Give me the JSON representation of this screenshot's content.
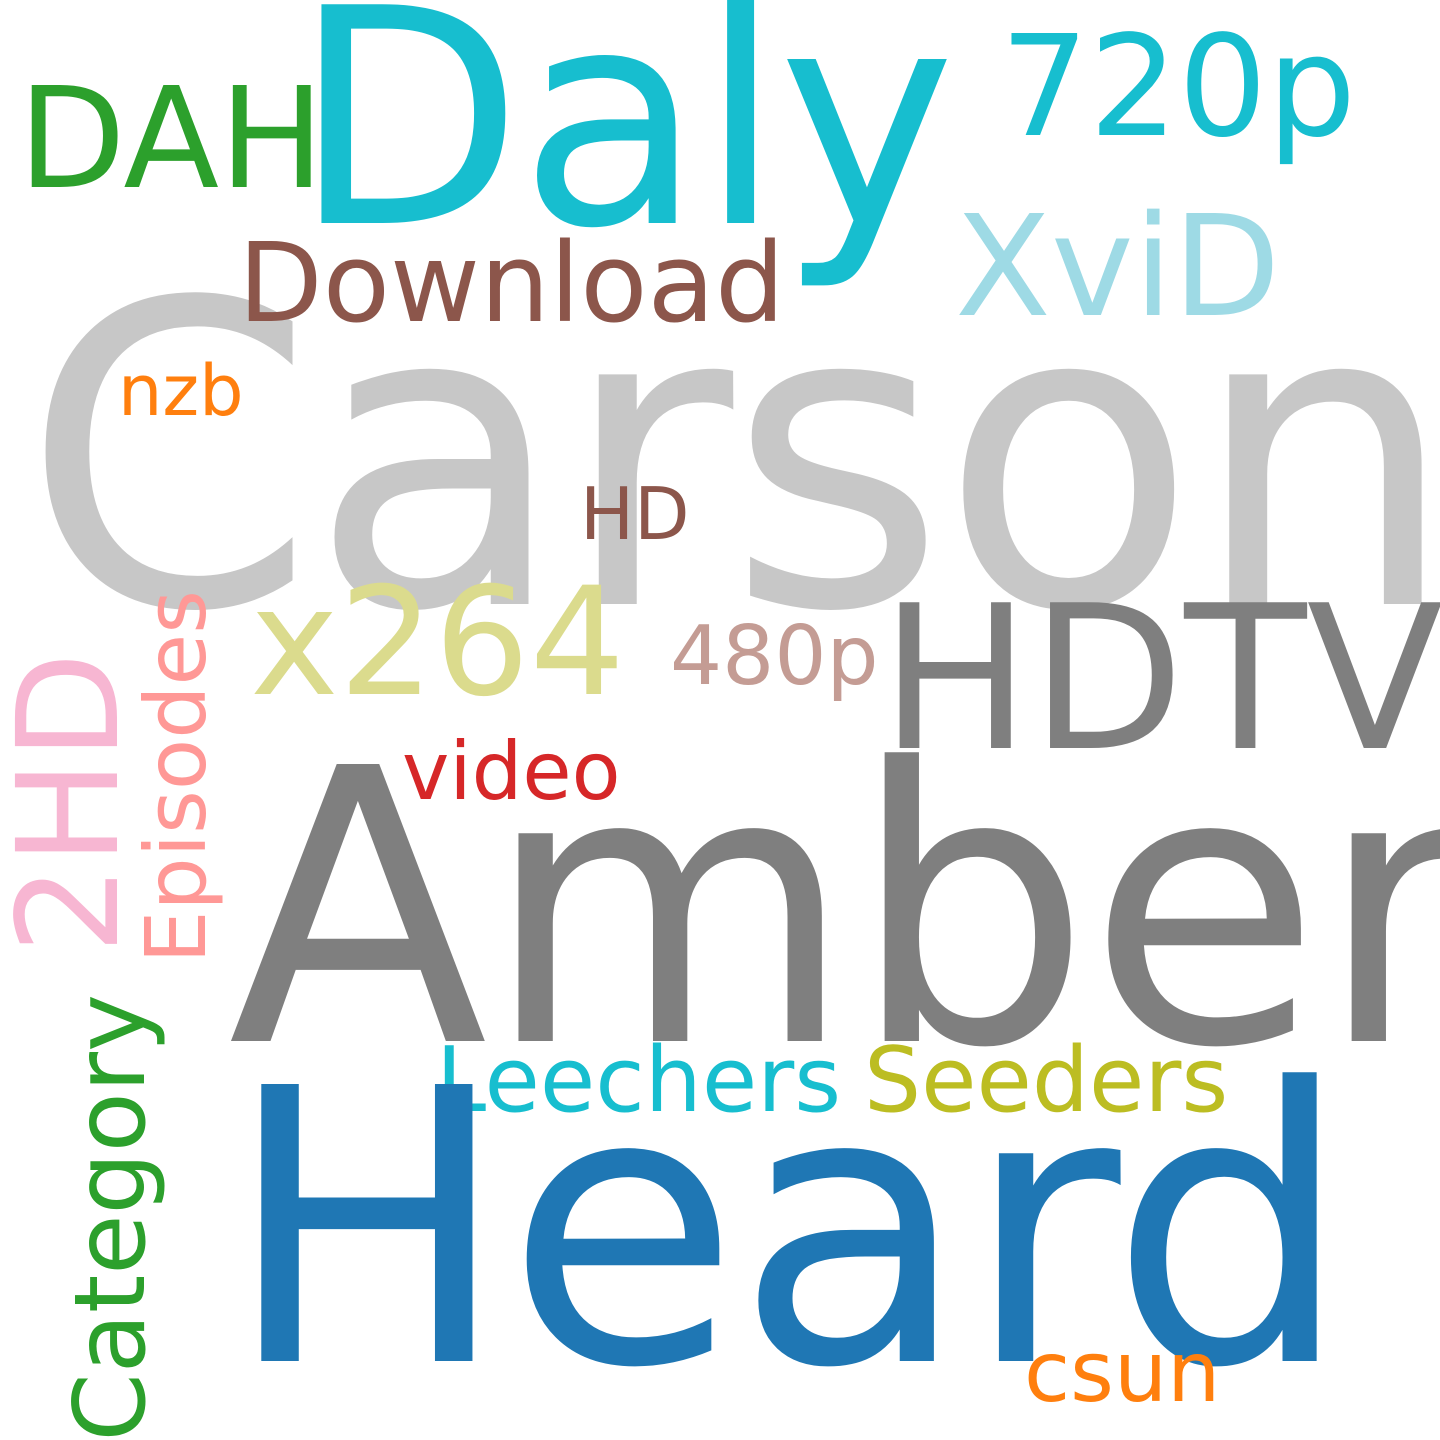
{
  "words": [
    {
      "text": "Carson",
      "color": "#c7c7c7"
    },
    {
      "text": "Amber",
      "color": "#7f7f7f"
    },
    {
      "text": "Heard",
      "color": "#1f77b4"
    },
    {
      "text": "Daly",
      "color": "#17becf"
    },
    {
      "text": "HDTV",
      "color": "#7f7f7f"
    },
    {
      "text": "x264",
      "color": "#dbdb8d"
    },
    {
      "text": "720p",
      "color": "#17becf"
    },
    {
      "text": "DAH",
      "color": "#2ca02c"
    },
    {
      "text": "XviD",
      "color": "#9edae5"
    },
    {
      "text": "Download",
      "color": "#8c564b"
    },
    {
      "text": "2HD",
      "color": "#f7b6d2"
    },
    {
      "text": "Episodes",
      "color": "#ff9896"
    },
    {
      "text": "Category",
      "color": "#2ca02c"
    },
    {
      "text": "Leechers",
      "color": "#17becf"
    },
    {
      "text": "Seeders",
      "color": "#bcbd22"
    },
    {
      "text": "480p",
      "color": "#c49c94"
    },
    {
      "text": "video",
      "color": "#d62728"
    },
    {
      "text": "HD",
      "color": "#8c564b"
    },
    {
      "text": "nzb",
      "color": "#ff7f0e"
    },
    {
      "text": "csun",
      "color": "#ff7f0e"
    }
  ]
}
